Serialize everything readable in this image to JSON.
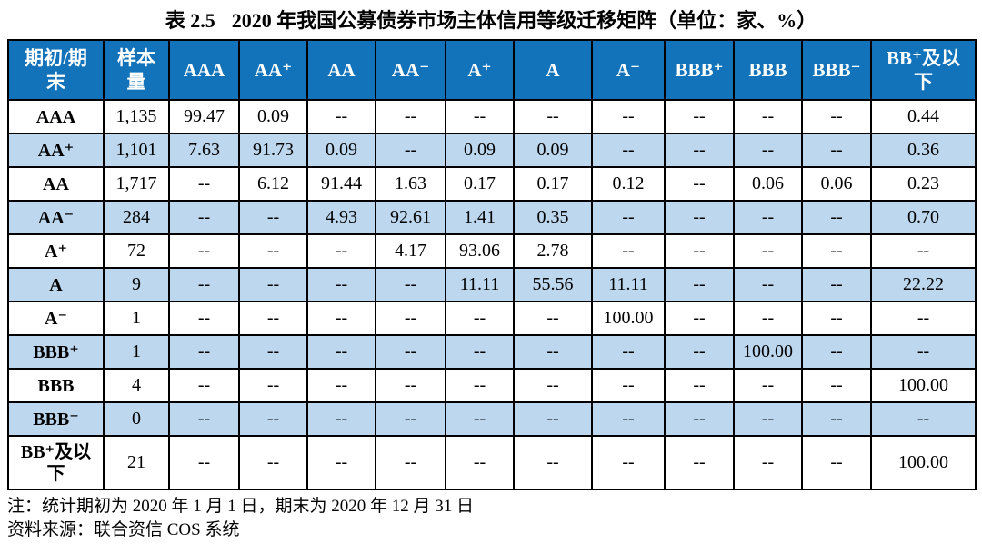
{
  "title": {
    "prefix": "表 2.5",
    "text": "2020 年我国公募债券市场主体信用等级迁移矩阵（单位：家、%）"
  },
  "table": {
    "corner_header": "期初/期\n末",
    "sample_header": "样本\n量",
    "rating_headers": [
      "AAA",
      "AA⁺",
      "AA",
      "AA⁻",
      "A⁺",
      "A",
      "A⁻",
      "BBB⁺",
      "BBB",
      "BBB⁻",
      "BB⁺及以\n下"
    ],
    "rows": [
      {
        "label": "AAA",
        "sample": "1,135",
        "values": [
          "99.47",
          "0.09",
          "--",
          "--",
          "--",
          "--",
          "--",
          "--",
          "--",
          "--",
          "0.44"
        ]
      },
      {
        "label": "AA⁺",
        "sample": "1,101",
        "values": [
          "7.63",
          "91.73",
          "0.09",
          "--",
          "0.09",
          "0.09",
          "--",
          "--",
          "--",
          "--",
          "0.36"
        ]
      },
      {
        "label": "AA",
        "sample": "1,717",
        "values": [
          "--",
          "6.12",
          "91.44",
          "1.63",
          "0.17",
          "0.17",
          "0.12",
          "--",
          "0.06",
          "0.06",
          "0.23"
        ]
      },
      {
        "label": "AA⁻",
        "sample": "284",
        "values": [
          "--",
          "--",
          "4.93",
          "92.61",
          "1.41",
          "0.35",
          "--",
          "--",
          "--",
          "--",
          "0.70"
        ]
      },
      {
        "label": "A⁺",
        "sample": "72",
        "values": [
          "--",
          "--",
          "--",
          "4.17",
          "93.06",
          "2.78",
          "--",
          "--",
          "--",
          "--",
          "--"
        ]
      },
      {
        "label": "A",
        "sample": "9",
        "values": [
          "--",
          "--",
          "--",
          "--",
          "11.11",
          "55.56",
          "11.11",
          "--",
          "--",
          "--",
          "22.22"
        ]
      },
      {
        "label": "A⁻",
        "sample": "1",
        "values": [
          "--",
          "--",
          "--",
          "--",
          "--",
          "--",
          "100.00",
          "--",
          "--",
          "--",
          "--"
        ]
      },
      {
        "label": "BBB⁺",
        "sample": "1",
        "values": [
          "--",
          "--",
          "--",
          "--",
          "--",
          "--",
          "--",
          "--",
          "100.00",
          "--",
          "--"
        ]
      },
      {
        "label": "BBB",
        "sample": "4",
        "values": [
          "--",
          "--",
          "--",
          "--",
          "--",
          "--",
          "--",
          "--",
          "--",
          "--",
          "100.00"
        ]
      },
      {
        "label": "BBB⁻",
        "sample": "0",
        "values": [
          "--",
          "--",
          "--",
          "--",
          "--",
          "--",
          "--",
          "--",
          "--",
          "--",
          "--"
        ]
      },
      {
        "label": "BB⁺及以\n下",
        "sample": "21",
        "values": [
          "--",
          "--",
          "--",
          "--",
          "--",
          "--",
          "--",
          "--",
          "--",
          "--",
          "100.00"
        ]
      }
    ]
  },
  "notes": {
    "note": "注：统计期初为 2020 年 1 月 1 日，期末为 2020 年 12 月 31 日",
    "source": "资料来源：联合资信 COS 系统"
  },
  "colors": {
    "header_bg": "#1272BA",
    "header_text": "#FFFFFF",
    "row_alt_bg": "#BDD7EE",
    "row_bg": "#FFFFFF",
    "border": "#000000"
  }
}
